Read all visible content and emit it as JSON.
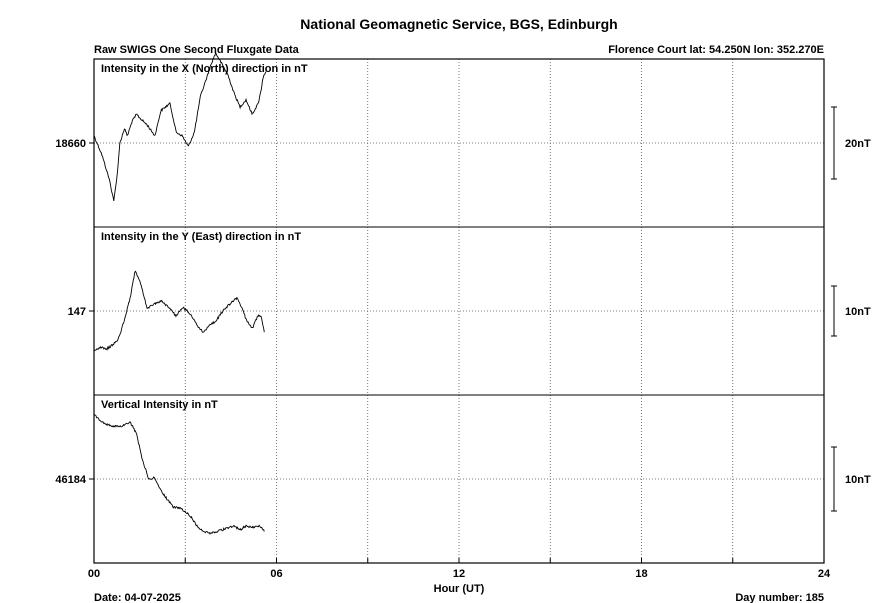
{
  "header": {
    "title": "National Geomagnetic Service, BGS, Edinburgh",
    "left": "Raw SWIGS One Second Fluxgate Data",
    "right": "Florence Court  lat: 54.250N lon: 352.270E"
  },
  "footer": {
    "date": "Date: 04-07-2025",
    "day": "Day number:  185"
  },
  "chart_data": {
    "type": "line",
    "xlabel": "Hour (UT)",
    "xlim": [
      0,
      24
    ],
    "xticks": [
      "00",
      "06",
      "12",
      "18",
      "24"
    ],
    "grid": true,
    "panels": [
      {
        "label": "Intensity in the X (North) direction in nT",
        "ref_value": "18660",
        "ref": 18660,
        "scale_label": "20nT",
        "scale_nT": 20,
        "x": [
          0.0,
          0.25,
          0.5,
          0.65,
          0.75,
          0.85,
          1.0,
          1.1,
          1.25,
          1.4,
          1.5,
          1.75,
          2.0,
          2.2,
          2.5,
          2.7,
          2.9,
          3.1,
          3.3,
          3.5,
          3.7,
          3.9,
          4.0,
          4.2,
          4.4,
          4.6,
          4.8,
          5.0,
          5.2,
          5.4,
          5.5,
          5.55,
          5.65
        ],
        "y": [
          18662,
          18657,
          18650,
          18644,
          18650,
          18660,
          18664,
          18662,
          18666,
          18668,
          18667,
          18665,
          18662,
          18669,
          18671,
          18663,
          18662,
          18659,
          18663,
          18673,
          18678,
          18683,
          18685,
          18682,
          18679,
          18674,
          18670,
          18672,
          18668,
          18671,
          18675,
          18678,
          18680
        ]
      },
      {
        "label": "Intensity in the Y (East) direction in nT",
        "ref_value": "147",
        "ref": 147,
        "scale_label": "10nT",
        "scale_nT": 10,
        "x": [
          0.0,
          0.25,
          0.4,
          0.6,
          0.8,
          1.0,
          1.2,
          1.35,
          1.5,
          1.6,
          1.75,
          2.0,
          2.2,
          2.5,
          2.7,
          2.9,
          3.0,
          3.2,
          3.4,
          3.6,
          3.8,
          4.0,
          4.2,
          4.5,
          4.7,
          4.9,
          5.0,
          5.2,
          5.4,
          5.5,
          5.6
        ],
        "y": [
          140.8,
          141.2,
          140.9,
          141.6,
          142.5,
          145.6,
          149.3,
          153.4,
          151.8,
          150.1,
          147.4,
          148.2,
          148.6,
          147.4,
          146.2,
          147.6,
          147.3,
          146.3,
          144.7,
          143.5,
          144.9,
          145.3,
          146.8,
          148.3,
          149.1,
          147.1,
          145.6,
          144.2,
          146.4,
          146.2,
          143.6
        ]
      },
      {
        "label": "Vertical Intensity in nT",
        "ref_value": "46184",
        "ref": 46184,
        "scale_label": "10nT",
        "scale_nT": 10,
        "x": [
          0.0,
          0.3,
          0.6,
          0.9,
          1.2,
          1.4,
          1.6,
          1.8,
          2.0,
          2.2,
          2.4,
          2.6,
          2.8,
          3.0,
          3.2,
          3.4,
          3.6,
          3.8,
          4.0,
          4.2,
          4.4,
          4.6,
          4.8,
          5.0,
          5.2,
          5.4,
          5.5,
          5.6
        ],
        "y": [
          46194.2,
          46192.9,
          46192.4,
          46192.3,
          46193.0,
          46191.1,
          46186.9,
          46184.0,
          46184.2,
          46182.2,
          46180.8,
          46179.6,
          46179.4,
          46178.9,
          46177.9,
          46176.4,
          46175.7,
          46175.4,
          46175.6,
          46175.9,
          46176.2,
          46176.5,
          46175.9,
          46176.6,
          46176.3,
          46176.6,
          46176.3,
          46175.7
        ]
      }
    ]
  }
}
